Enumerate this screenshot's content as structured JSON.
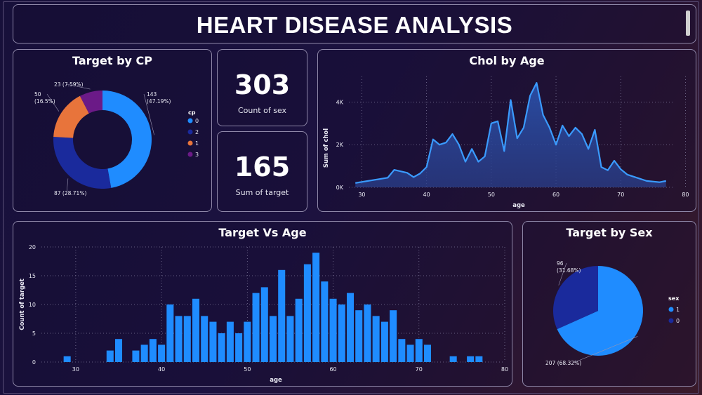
{
  "header": {
    "title": "HEART DISEASE ANALYSIS"
  },
  "kpis": {
    "count_of_sex": {
      "value": "303",
      "label": "Count of sex"
    },
    "sum_of_target": {
      "value": "165",
      "label": "Sum of target"
    }
  },
  "colors": {
    "blue_light": "#1f8cff",
    "blue_dark": "#1a2a9c",
    "orange": "#e8743b",
    "purple": "#6b1a87",
    "area_fill": "#2a4fa8",
    "area_line": "#3a9bff"
  },
  "chart_data": [
    {
      "id": "target_by_cp",
      "type": "pie",
      "title": "Target by CP",
      "legend_title": "cp",
      "legend_position": "right",
      "slices": [
        {
          "label": "0",
          "value": 143,
          "text": "143\n(47.19%)",
          "color": "#1f8cff"
        },
        {
          "label": "2",
          "value": 87,
          "text": "87 (28.71%)",
          "color": "#1a2a9c"
        },
        {
          "label": "1",
          "value": 50,
          "text": "50\n(16.5%)",
          "color": "#e8743b"
        },
        {
          "label": "3",
          "value": 23,
          "text": "23 (7.59%)",
          "color": "#6b1a87"
        }
      ]
    },
    {
      "id": "chol_by_age",
      "type": "area",
      "title": "Chol by Age",
      "xlabel": "age",
      "ylabel": "Sum of chol",
      "xlim": [
        28,
        78
      ],
      "ylim": [
        0,
        5200
      ],
      "xticks": [
        "30",
        "40",
        "50",
        "60",
        "70",
        "80"
      ],
      "yticks": [
        "0K",
        "2K",
        "4K"
      ],
      "x": [
        29,
        34,
        35,
        37,
        38,
        39,
        40,
        41,
        42,
        43,
        44,
        45,
        46,
        47,
        48,
        49,
        50,
        51,
        52,
        53,
        54,
        55,
        56,
        57,
        58,
        59,
        60,
        61,
        62,
        63,
        64,
        65,
        66,
        67,
        68,
        69,
        70,
        71,
        74,
        76,
        77
      ],
      "values": [
        204,
        450,
        820,
        680,
        480,
        650,
        950,
        2250,
        2000,
        2100,
        2500,
        2000,
        1200,
        1800,
        1200,
        1450,
        3000,
        3100,
        1700,
        4100,
        2300,
        2800,
        4300,
        4900,
        3400,
        2800,
        2000,
        2900,
        2400,
        2800,
        2500,
        1800,
        2700,
        950,
        800,
        1250,
        850,
        600,
        300,
        240,
        300
      ]
    },
    {
      "id": "target_vs_age",
      "type": "bar",
      "title": "Target Vs Age",
      "xlabel": "age",
      "ylabel": "Count of target",
      "xlim": [
        26,
        80
      ],
      "ylim": [
        0,
        20
      ],
      "xticks": [
        "30",
        "40",
        "50",
        "60",
        "70",
        "80"
      ],
      "yticks": [
        "0",
        "5",
        "10",
        "15",
        "20"
      ],
      "x": [
        29,
        34,
        35,
        37,
        38,
        39,
        40,
        41,
        42,
        43,
        44,
        45,
        46,
        47,
        48,
        49,
        50,
        51,
        52,
        53,
        54,
        55,
        56,
        57,
        58,
        59,
        60,
        61,
        62,
        63,
        64,
        65,
        66,
        67,
        68,
        69,
        70,
        71,
        74,
        76,
        77
      ],
      "values": [
        1,
        2,
        4,
        2,
        3,
        4,
        3,
        10,
        8,
        8,
        11,
        8,
        7,
        5,
        7,
        5,
        7,
        12,
        13,
        8,
        16,
        8,
        11,
        17,
        19,
        14,
        11,
        10,
        12,
        9,
        10,
        8,
        7,
        9,
        4,
        3,
        4,
        3,
        1,
        1,
        1
      ]
    },
    {
      "id": "target_by_sex",
      "type": "pie",
      "title": "Target by Sex",
      "legend_title": "sex",
      "legend_position": "right",
      "slices": [
        {
          "label": "1",
          "value": 207,
          "text": "207 (68.32%)",
          "color": "#1f8cff"
        },
        {
          "label": "0",
          "value": 96,
          "text": "96\n(31.68%)",
          "color": "#1a2a9c"
        }
      ]
    }
  ]
}
